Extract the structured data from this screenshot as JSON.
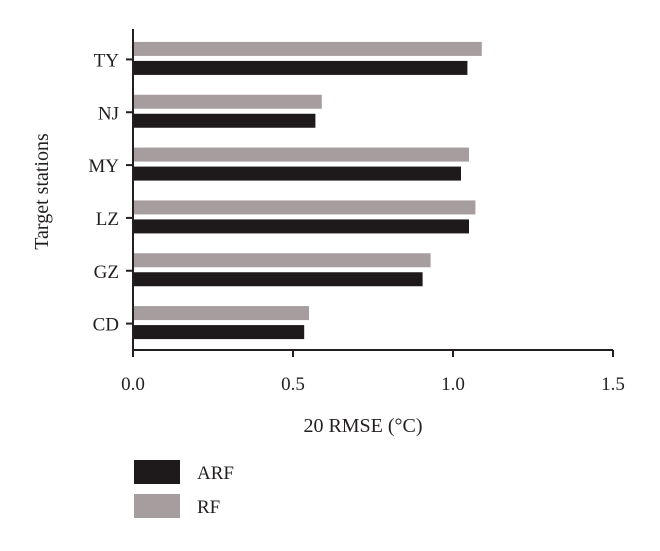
{
  "chart_data": {
    "type": "bar",
    "orientation": "horizontal",
    "categories": [
      "TY",
      "NJ",
      "MY",
      "LZ",
      "GZ",
      "CD"
    ],
    "series": [
      {
        "name": "RF",
        "color": "#a59d9e",
        "values": [
          1.09,
          0.59,
          1.05,
          1.07,
          0.93,
          0.55
        ]
      },
      {
        "name": "ARF",
        "color": "#1e1a1b",
        "values": [
          1.045,
          0.57,
          1.025,
          1.05,
          0.905,
          0.535
        ]
      }
    ],
    "xlabel": "20 RMSE (°C)",
    "ylabel": "Target stations",
    "xlim": [
      0,
      1.5
    ],
    "xticks": [
      "0.0",
      "0.5",
      "1.0",
      "1.5"
    ],
    "grid": false,
    "legend": {
      "placement": "bottom-left",
      "entries": [
        {
          "label": "ARF",
          "color": "#1e1a1b"
        },
        {
          "label": "RF",
          "color": "#a59d9e"
        }
      ]
    }
  }
}
